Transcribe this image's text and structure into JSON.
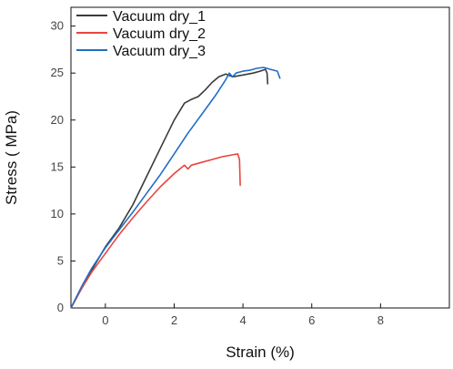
{
  "chart_data": {
    "type": "line",
    "title": "",
    "xlabel": "Strain (%)",
    "ylabel": "Stress ( MPa)",
    "xlim": [
      -1,
      10
    ],
    "ylim": [
      0,
      32
    ],
    "xticks": [
      0,
      2,
      4,
      6,
      8
    ],
    "yticks": [
      0,
      5,
      10,
      15,
      20,
      25,
      30
    ],
    "grid": false,
    "legend_position": "top-left",
    "series": [
      {
        "name": "Vacuum dry_1",
        "color": "#3a3a3a",
        "x": [
          -1.0,
          -0.7,
          -0.4,
          0.0,
          0.4,
          0.8,
          1.2,
          1.6,
          2.0,
          2.3,
          2.5,
          2.7,
          2.9,
          3.1,
          3.3,
          3.5,
          3.7,
          4.0,
          4.3,
          4.5,
          4.65,
          4.7,
          4.72
        ],
        "y": [
          0.0,
          2.0,
          4.0,
          6.5,
          8.5,
          11.0,
          14.0,
          17.0,
          20.0,
          21.8,
          22.2,
          22.5,
          23.2,
          24.0,
          24.6,
          24.9,
          24.6,
          24.8,
          25.0,
          25.2,
          25.4,
          25.0,
          23.8
        ]
      },
      {
        "name": "Vacuum dry_2",
        "color": "#e8453c",
        "x": [
          -1.0,
          -0.7,
          -0.4,
          0.0,
          0.4,
          0.8,
          1.2,
          1.6,
          2.0,
          2.3,
          2.4,
          2.5,
          2.8,
          3.1,
          3.4,
          3.7,
          3.85,
          3.9,
          3.92
        ],
        "y": [
          0.0,
          2.0,
          3.8,
          5.8,
          7.8,
          9.6,
          11.3,
          12.9,
          14.3,
          15.2,
          14.8,
          15.2,
          15.5,
          15.8,
          16.1,
          16.3,
          16.4,
          15.8,
          13.0
        ]
      },
      {
        "name": "Vacuum dry_3",
        "color": "#1f6fc5",
        "x": [
          -1.0,
          -0.7,
          -0.4,
          0.0,
          0.4,
          0.8,
          1.2,
          1.6,
          2.0,
          2.4,
          2.8,
          3.2,
          3.5,
          3.6,
          3.7,
          3.8,
          4.0,
          4.2,
          4.4,
          4.6,
          4.8,
          5.0,
          5.05,
          5.08
        ],
        "y": [
          0.0,
          2.2,
          4.2,
          6.4,
          8.3,
          10.2,
          12.2,
          14.2,
          16.4,
          18.6,
          20.6,
          22.6,
          24.3,
          25.0,
          24.6,
          25.0,
          25.2,
          25.3,
          25.5,
          25.6,
          25.4,
          25.2,
          24.7,
          24.4
        ]
      }
    ]
  }
}
